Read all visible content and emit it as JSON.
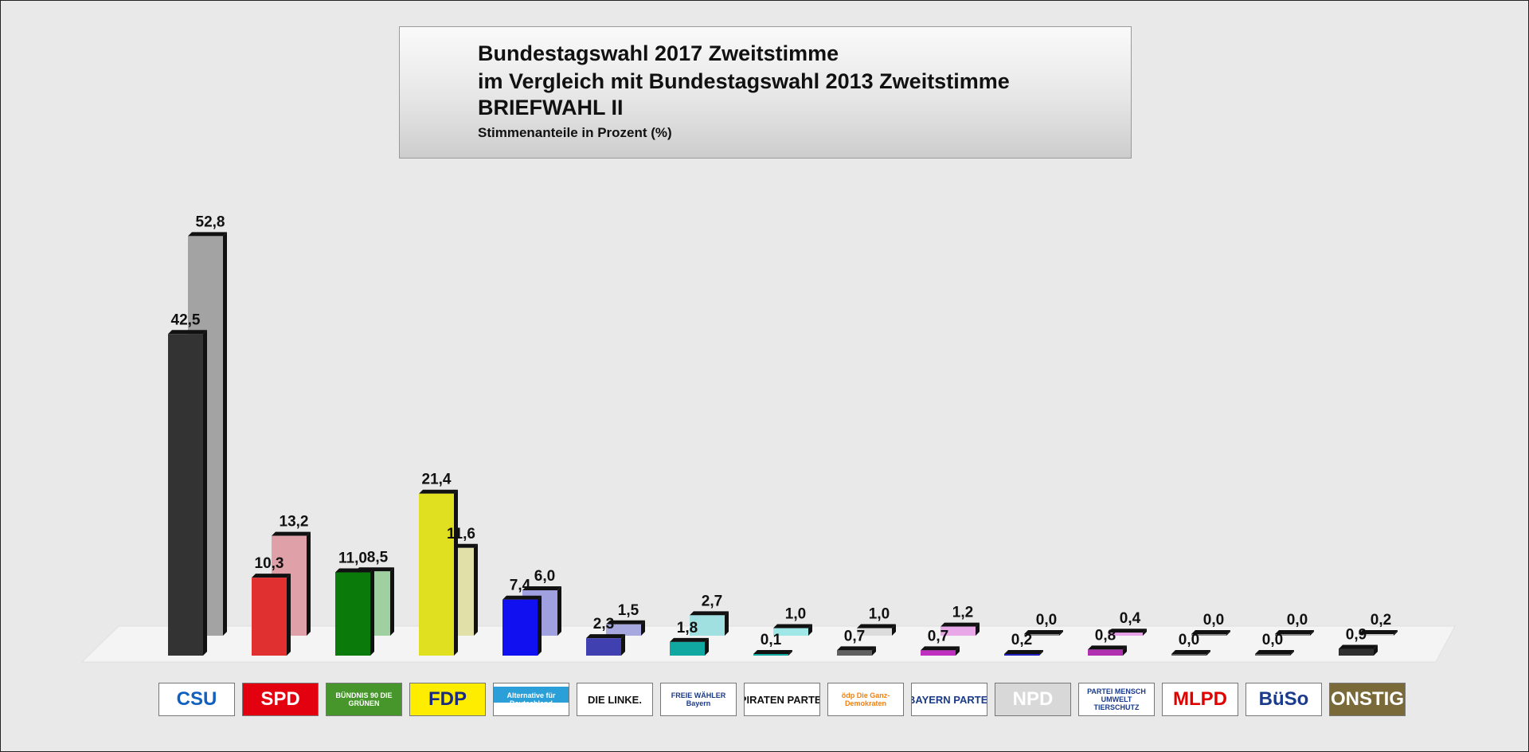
{
  "title": {
    "line1": "Bundestagswahl 2017 Zweitstimme",
    "line2": "im Vergleich mit Bundestagswahl 2013 Zweitstimme",
    "line3": "BRIEFWAHL II",
    "subtitle": "Stimmenanteile in Prozent (%)"
  },
  "chart_data": {
    "type": "bar",
    "title": "Bundestagswahl 2017 Zweitstimme im Vergleich mit Bundestagswahl 2013 Zweitstimme – BRIEFWAHL II",
    "ylabel": "Stimmenanteile in Prozent (%)",
    "ylim": [
      0,
      55
    ],
    "categories": [
      "CSU",
      "SPD",
      "BÜNDNIS 90 / DIE GRÜNEN",
      "FDP",
      "Alternative für Deutschland",
      "DIE LINKE.",
      "FREIE WÄHLER",
      "PIRATEN PARTEI",
      "ödp",
      "BAYERN PARTEI",
      "NPD",
      "PARTEI MENSCH UMWELT TIERSCHUTZ",
      "MLPD",
      "BüSo",
      "SONSTIGE"
    ],
    "series": [
      {
        "name": "2017",
        "values": [
          42.5,
          10.3,
          11.0,
          21.4,
          7.4,
          2.3,
          1.8,
          0.1,
          0.7,
          0.7,
          0.2,
          0.8,
          0.0,
          0.0,
          0.9
        ],
        "labels": [
          "42,5",
          "10,3",
          "11,0",
          "21,4",
          "7,4",
          "2,3",
          "1,8",
          "0,1",
          "0,7",
          "0,7",
          "0,2",
          "0,8",
          "0,0",
          "0,0",
          "0,9"
        ]
      },
      {
        "name": "2013",
        "values": [
          52.8,
          13.2,
          8.5,
          11.6,
          6.0,
          1.5,
          2.7,
          1.0,
          1.0,
          1.2,
          0.0,
          0.4,
          0.0,
          0.0,
          0.2
        ],
        "labels": [
          "52,8",
          "13,2",
          "8,5",
          "11,6",
          "6,0",
          "1,5",
          "2,7",
          "1,0",
          "1,0",
          "1,2",
          "0,0",
          "0,4",
          "0,0",
          "0,0",
          "0,2"
        ]
      }
    ],
    "colors_2017": [
      "#333333",
      "#e03030",
      "#0a7a0a",
      "#e0e020",
      "#1010f0",
      "#4040b0",
      "#10a8a0",
      "#10a8a0",
      "#606060",
      "#c030c0",
      "#2020c0",
      "#b030b0",
      "#606060",
      "#606060",
      "#303030"
    ],
    "colors_2013": [
      "#a3a3a3",
      "#e0a0a8",
      "#a0d0a0",
      "#e0e0a8",
      "#a0a0e0",
      "#a8a8e0",
      "#a0e0e0",
      "#a0e8e8",
      "#dcdcdc",
      "#e8a8e8",
      "#8a8a8a",
      "#e8a0e8",
      "#8a8a8a",
      "#8a8a8a",
      "#cccccc"
    ]
  },
  "parties": [
    {
      "name": "CSU",
      "bg": "#ffffff",
      "fg": "#1060c0"
    },
    {
      "name": "SPD",
      "bg": "#e3000f",
      "fg": "#ffffff"
    },
    {
      "name": "BÜNDNIS 90 DIE GRÜNEN",
      "bg": "#46962b",
      "fg": "#ffffff"
    },
    {
      "name": "FDP",
      "bg": "#ffed00",
      "fg": "#1a2a80"
    },
    {
      "name": "Alternative für Deutschland",
      "bg": "#ffffff",
      "fg": "#ffffff"
    },
    {
      "name": "DIE LINKE.",
      "bg": "#ffffff",
      "fg": "#111111"
    },
    {
      "name": "FREIE WÄHLER Bayern",
      "bg": "#ffffff",
      "fg": "#1a3a8a"
    },
    {
      "name": "PIRATEN PARTEI",
      "bg": "#ffffff",
      "fg": "#111111"
    },
    {
      "name": "ödp Die Ganz-Demokraten",
      "bg": "#ffffff",
      "fg": "#f08010"
    },
    {
      "name": "BAYERN PARTEI",
      "bg": "#ffffff",
      "fg": "#1a3a8a"
    },
    {
      "name": "NPD",
      "bg": "#d8d8d8",
      "fg": "#ffffff"
    },
    {
      "name": "PARTEI MENSCH UMWELT TIERSCHUTZ",
      "bg": "#ffffff",
      "fg": "#1a3a8a"
    },
    {
      "name": "MLPD",
      "bg": "#ffffff",
      "fg": "#e00000"
    },
    {
      "name": "BüSo",
      "bg": "#ffffff",
      "fg": "#1a3a8a"
    },
    {
      "name": "SONSTIGE",
      "bg": "#7a6a3a",
      "fg": "#ffffff"
    }
  ]
}
